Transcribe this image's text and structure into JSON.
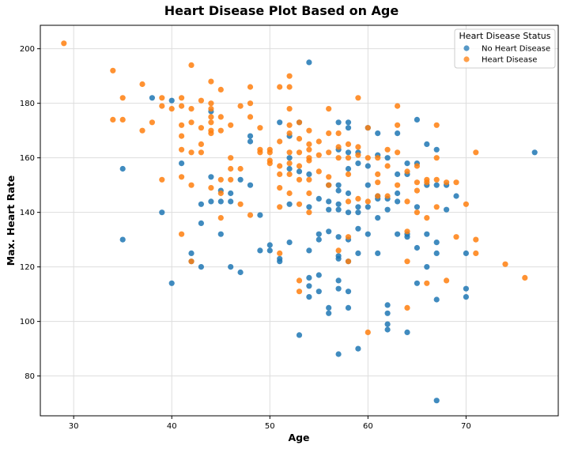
{
  "chart_data": {
    "type": "scatter",
    "title": "Heart Disease Plot Based on Age",
    "xlabel": "Age",
    "ylabel": "Max. Heart Rate",
    "xlim": [
      26.6,
      79.4
    ],
    "ylim": [
      65.4,
      208.6
    ],
    "xticks": [
      30,
      40,
      50,
      60,
      70
    ],
    "yticks": [
      80,
      100,
      120,
      140,
      160,
      180,
      200
    ],
    "grid": true,
    "legend": {
      "title": "Heart Disease Status",
      "placement": "top-right"
    },
    "series": [
      {
        "name": "No Heart Disease",
        "color": "#1f77b4",
        "points": [
          [
            35,
            156
          ],
          [
            35,
            130
          ],
          [
            38,
            182
          ],
          [
            39,
            140
          ],
          [
            40,
            181
          ],
          [
            40,
            114
          ],
          [
            41,
            158
          ],
          [
            42,
            125
          ],
          [
            42,
            122
          ],
          [
            43,
            143
          ],
          [
            43,
            136
          ],
          [
            43,
            120
          ],
          [
            44,
            177
          ],
          [
            44,
            153
          ],
          [
            44,
            144
          ],
          [
            45,
            148
          ],
          [
            45,
            144
          ],
          [
            45,
            132
          ],
          [
            46,
            147
          ],
          [
            46,
            144
          ],
          [
            46,
            120
          ],
          [
            47,
            152
          ],
          [
            47,
            118
          ],
          [
            48,
            168
          ],
          [
            48,
            166
          ],
          [
            48,
            150
          ],
          [
            49,
            139
          ],
          [
            49,
            126
          ],
          [
            50,
            128
          ],
          [
            50,
            126
          ],
          [
            51,
            173
          ],
          [
            51,
            123
          ],
          [
            51,
            122
          ],
          [
            52,
            168
          ],
          [
            52,
            160
          ],
          [
            52,
            156
          ],
          [
            52,
            143
          ],
          [
            52,
            129
          ],
          [
            53,
            173
          ],
          [
            53,
            155
          ],
          [
            53,
            95
          ],
          [
            54,
            195
          ],
          [
            54,
            154
          ],
          [
            54,
            142
          ],
          [
            54,
            126
          ],
          [
            54,
            116
          ],
          [
            54,
            113
          ],
          [
            54,
            109
          ],
          [
            55,
            145
          ],
          [
            55,
            132
          ],
          [
            55,
            130
          ],
          [
            55,
            117
          ],
          [
            55,
            111
          ],
          [
            56,
            150
          ],
          [
            56,
            144
          ],
          [
            56,
            141
          ],
          [
            56,
            133
          ],
          [
            56,
            105
          ],
          [
            56,
            103
          ],
          [
            57,
            173
          ],
          [
            57,
            163
          ],
          [
            57,
            150
          ],
          [
            57,
            148
          ],
          [
            57,
            143
          ],
          [
            57,
            141
          ],
          [
            57,
            131
          ],
          [
            57,
            124
          ],
          [
            57,
            123
          ],
          [
            57,
            115
          ],
          [
            57,
            112
          ],
          [
            57,
            88
          ],
          [
            58,
            173
          ],
          [
            58,
            171
          ],
          [
            58,
            162
          ],
          [
            58,
            156
          ],
          [
            58,
            147
          ],
          [
            58,
            140
          ],
          [
            58,
            130
          ],
          [
            58,
            122
          ],
          [
            58,
            111
          ],
          [
            58,
            105
          ],
          [
            59,
            162
          ],
          [
            59,
            158
          ],
          [
            59,
            142
          ],
          [
            59,
            140
          ],
          [
            59,
            134
          ],
          [
            59,
            125
          ],
          [
            59,
            90
          ],
          [
            60,
            171
          ],
          [
            60,
            157
          ],
          [
            60,
            150
          ],
          [
            60,
            142
          ],
          [
            60,
            132
          ],
          [
            61,
            169
          ],
          [
            61,
            161
          ],
          [
            61,
            146
          ],
          [
            61,
            145
          ],
          [
            61,
            138
          ],
          [
            61,
            125
          ],
          [
            62,
            160
          ],
          [
            62,
            145
          ],
          [
            62,
            141
          ],
          [
            62,
            106
          ],
          [
            62,
            103
          ],
          [
            62,
            99
          ],
          [
            62,
            97
          ],
          [
            63,
            169
          ],
          [
            63,
            154
          ],
          [
            63,
            147
          ],
          [
            63,
            144
          ],
          [
            63,
            132
          ],
          [
            64,
            158
          ],
          [
            64,
            154
          ],
          [
            64,
            132
          ],
          [
            64,
            131
          ],
          [
            64,
            96
          ],
          [
            65,
            174
          ],
          [
            65,
            158
          ],
          [
            65,
            142
          ],
          [
            65,
            127
          ],
          [
            65,
            114
          ],
          [
            66,
            165
          ],
          [
            66,
            150
          ],
          [
            66,
            132
          ],
          [
            66,
            120
          ],
          [
            67,
            163
          ],
          [
            67,
            150
          ],
          [
            67,
            129
          ],
          [
            67,
            125
          ],
          [
            67,
            108
          ],
          [
            67,
            71
          ],
          [
            68,
            150
          ],
          [
            68,
            141
          ],
          [
            69,
            146
          ],
          [
            70,
            125
          ],
          [
            70,
            112
          ],
          [
            70,
            109
          ],
          [
            77,
            162
          ]
        ]
      },
      {
        "name": "Heart Disease",
        "color": "#ff7f0e",
        "points": [
          [
            29,
            202
          ],
          [
            34,
            192
          ],
          [
            34,
            174
          ],
          [
            35,
            182
          ],
          [
            35,
            174
          ],
          [
            37,
            187
          ],
          [
            37,
            170
          ],
          [
            38,
            173
          ],
          [
            39,
            182
          ],
          [
            39,
            179
          ],
          [
            39,
            152
          ],
          [
            40,
            178
          ],
          [
            41,
            182
          ],
          [
            41,
            179
          ],
          [
            41,
            172
          ],
          [
            41,
            168
          ],
          [
            41,
            163
          ],
          [
            41,
            153
          ],
          [
            41,
            132
          ],
          [
            42,
            194
          ],
          [
            42,
            178
          ],
          [
            42,
            173
          ],
          [
            42,
            162
          ],
          [
            42,
            150
          ],
          [
            42,
            122
          ],
          [
            43,
            181
          ],
          [
            43,
            171
          ],
          [
            43,
            165
          ],
          [
            43,
            162
          ],
          [
            44,
            188
          ],
          [
            44,
            180
          ],
          [
            44,
            178
          ],
          [
            44,
            175
          ],
          [
            44,
            173
          ],
          [
            44,
            170
          ],
          [
            44,
            169
          ],
          [
            44,
            149
          ],
          [
            45,
            185
          ],
          [
            45,
            175
          ],
          [
            45,
            170
          ],
          [
            45,
            152
          ],
          [
            45,
            147
          ],
          [
            45,
            138
          ],
          [
            46,
            172
          ],
          [
            46,
            160
          ],
          [
            46,
            156
          ],
          [
            46,
            152
          ],
          [
            47,
            179
          ],
          [
            47,
            156
          ],
          [
            47,
            143
          ],
          [
            48,
            186
          ],
          [
            48,
            180
          ],
          [
            48,
            175
          ],
          [
            48,
            139
          ],
          [
            49,
            171
          ],
          [
            49,
            163
          ],
          [
            49,
            162
          ],
          [
            50,
            163
          ],
          [
            50,
            162
          ],
          [
            50,
            159
          ],
          [
            50,
            158
          ],
          [
            51,
            186
          ],
          [
            51,
            166
          ],
          [
            51,
            157
          ],
          [
            51,
            154
          ],
          [
            51,
            149
          ],
          [
            51,
            142
          ],
          [
            51,
            125
          ],
          [
            52,
            190
          ],
          [
            52,
            186
          ],
          [
            52,
            178
          ],
          [
            52,
            172
          ],
          [
            52,
            169
          ],
          [
            52,
            162
          ],
          [
            52,
            158
          ],
          [
            52,
            154
          ],
          [
            52,
            147
          ],
          [
            53,
            173
          ],
          [
            53,
            167
          ],
          [
            53,
            162
          ],
          [
            53,
            157
          ],
          [
            53,
            152
          ],
          [
            53,
            143
          ],
          [
            53,
            115
          ],
          [
            53,
            111
          ],
          [
            54,
            170
          ],
          [
            54,
            165
          ],
          [
            54,
            163
          ],
          [
            54,
            160
          ],
          [
            54,
            159
          ],
          [
            54,
            152
          ],
          [
            54,
            147
          ],
          [
            54,
            140
          ],
          [
            55,
            166
          ],
          [
            55,
            161
          ],
          [
            55,
            155
          ],
          [
            56,
            178
          ],
          [
            56,
            169
          ],
          [
            56,
            162
          ],
          [
            56,
            153
          ],
          [
            56,
            150
          ],
          [
            57,
            169
          ],
          [
            57,
            164
          ],
          [
            57,
            160
          ],
          [
            57,
            126
          ],
          [
            58,
            165
          ],
          [
            58,
            160
          ],
          [
            58,
            154
          ],
          [
            58,
            144
          ],
          [
            58,
            131
          ],
          [
            58,
            122
          ],
          [
            59,
            182
          ],
          [
            59,
            164
          ],
          [
            59,
            161
          ],
          [
            59,
            145
          ],
          [
            60,
            171
          ],
          [
            60,
            160
          ],
          [
            60,
            144
          ],
          [
            60,
            96
          ],
          [
            61,
            160
          ],
          [
            61,
            154
          ],
          [
            61,
            151
          ],
          [
            61,
            146
          ],
          [
            62,
            163
          ],
          [
            62,
            157
          ],
          [
            62,
            146
          ],
          [
            63,
            179
          ],
          [
            63,
            172
          ],
          [
            63,
            162
          ],
          [
            63,
            150
          ],
          [
            64,
            155
          ],
          [
            64,
            144
          ],
          [
            64,
            133
          ],
          [
            64,
            122
          ],
          [
            64,
            105
          ],
          [
            65,
            157
          ],
          [
            65,
            151
          ],
          [
            65,
            148
          ],
          [
            65,
            140
          ],
          [
            66,
            152
          ],
          [
            66,
            151
          ],
          [
            66,
            138
          ],
          [
            66,
            114
          ],
          [
            67,
            172
          ],
          [
            67,
            160
          ],
          [
            67,
            152
          ],
          [
            67,
            142
          ],
          [
            68,
            151
          ],
          [
            68,
            115
          ],
          [
            69,
            151
          ],
          [
            69,
            131
          ],
          [
            70,
            143
          ],
          [
            71,
            162
          ],
          [
            71,
            130
          ],
          [
            71,
            125
          ],
          [
            74,
            121
          ],
          [
            76,
            116
          ]
        ]
      }
    ]
  }
}
